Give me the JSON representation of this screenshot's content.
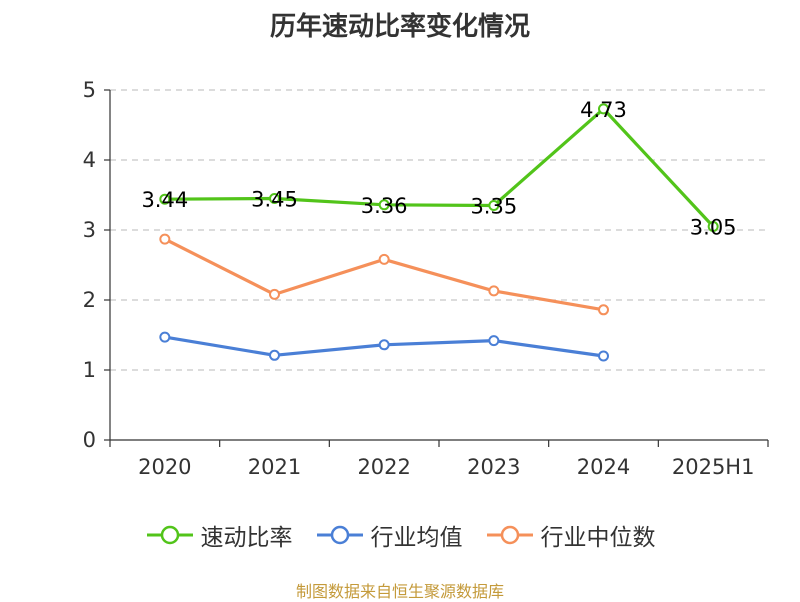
{
  "chart_data": {
    "type": "line",
    "title": "历年速动比率变化情况",
    "categories": [
      "2020",
      "2021",
      "2022",
      "2023",
      "2024",
      "2025H1"
    ],
    "ylim": [
      0,
      5
    ],
    "yticks": [
      "0",
      "1",
      "2",
      "3",
      "4",
      "5"
    ],
    "grid": true,
    "legend_position": "bottom",
    "series": [
      {
        "name": "速动比率",
        "color": "#52c41a",
        "values": [
          3.44,
          3.45,
          3.36,
          3.35,
          4.73,
          3.05
        ],
        "labels": [
          "3.44",
          "3.45",
          "3.36",
          "3.35",
          "4.73",
          "3.05"
        ]
      },
      {
        "name": "行业均值",
        "color": "#4a7fd6",
        "values": [
          1.47,
          1.21,
          1.36,
          1.42,
          1.2,
          null
        ]
      },
      {
        "name": "行业中位数",
        "color": "#f5905a",
        "values": [
          2.87,
          2.08,
          2.58,
          2.13,
          1.86,
          null
        ]
      }
    ]
  },
  "source": "制图数据来自恒生聚源数据库"
}
